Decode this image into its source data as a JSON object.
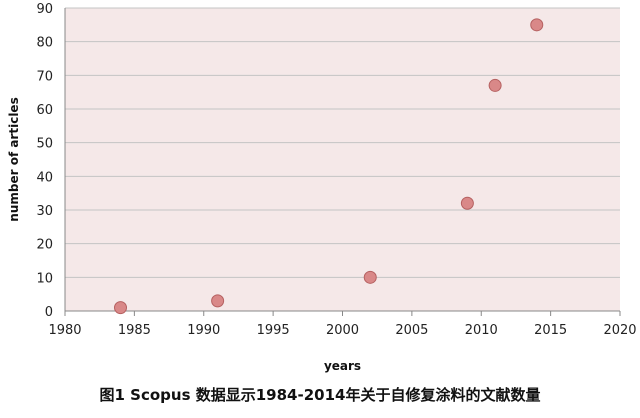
{
  "chart_data": {
    "type": "scatter",
    "title": "",
    "xlabel": "years",
    "ylabel": "number of articles",
    "xlim": [
      1980,
      2020
    ],
    "ylim": [
      0,
      90
    ],
    "xticks": [
      1980,
      1985,
      1990,
      1995,
      2000,
      2005,
      2010,
      2015,
      2020
    ],
    "yticks": [
      0,
      10,
      20,
      30,
      40,
      50,
      60,
      70,
      80,
      90
    ],
    "grid": "horizontal",
    "legend": "none",
    "series": [
      {
        "x": [
          1984,
          1991,
          2002,
          2009,
          2011,
          2014
        ],
        "y": [
          1,
          3,
          10,
          32,
          67,
          85
        ],
        "color": "#d98888"
      }
    ]
  },
  "colors": {
    "plot_background": "#f5e8e8",
    "gridline": "#c4c4c4",
    "marker_fill": "#d98888",
    "marker_stroke": "#b56060"
  },
  "caption": "图1 Scopus 数据显示1984-2014年关于自修复涂料的文献数量"
}
